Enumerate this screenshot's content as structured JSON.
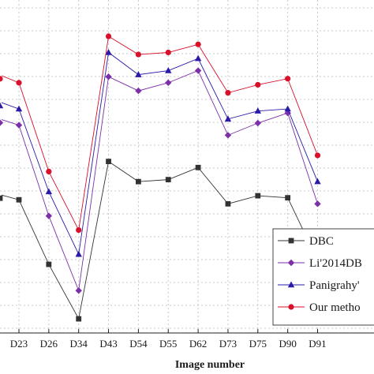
{
  "chart_data": {
    "type": "line",
    "xlabel": "Image number",
    "ylabel": "",
    "title": "",
    "categories": [
      "D23",
      "D26",
      "D34",
      "D43",
      "D54",
      "D55",
      "D62",
      "D73",
      "D75",
      "D90",
      "D91"
    ],
    "grid": true,
    "legend_position": "bottom-right",
    "series": [
      {
        "name": "DBC",
        "color": "#333333",
        "marker": "square",
        "values": [
          2.86,
          2.54,
          2.27,
          3.05,
          2.95,
          2.96,
          3.02,
          2.84,
          2.88,
          2.87,
          2.56
        ]
      },
      {
        "name": "Li'2014DB",
        "color": "#7b2fa8",
        "marker": "diamond",
        "values": [
          3.23,
          2.78,
          2.41,
          3.47,
          3.4,
          3.44,
          3.5,
          3.18,
          3.24,
          3.29,
          2.84
        ]
      },
      {
        "name": "Panigrahy'",
        "color": "#2a1aa8",
        "marker": "triangle",
        "values": [
          3.31,
          2.9,
          2.59,
          3.59,
          3.48,
          3.5,
          3.56,
          3.26,
          3.3,
          3.31,
          2.95
        ]
      },
      {
        "name": "Our metho",
        "color": "#d8102a",
        "marker": "circle",
        "values": [
          3.44,
          3.0,
          2.71,
          3.67,
          3.58,
          3.59,
          3.63,
          3.39,
          3.43,
          3.46,
          3.08
        ]
      }
    ],
    "ylim": [
      2.2,
      3.85
    ]
  }
}
